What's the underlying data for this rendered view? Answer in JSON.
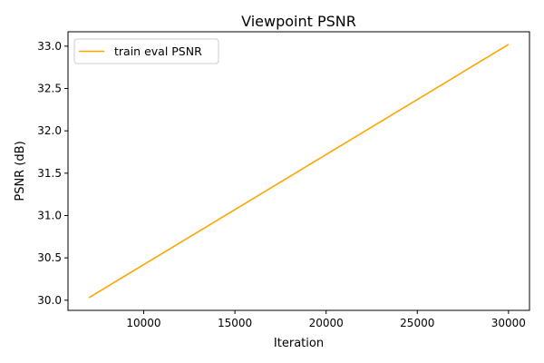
{
  "chart_data": {
    "type": "line",
    "title": "Viewpoint PSNR",
    "xlabel": "Iteration",
    "ylabel": "PSNR (dB)",
    "xlim": [
      5850,
      31150
    ],
    "ylim": [
      29.88,
      33.17
    ],
    "xticks": [
      10000,
      15000,
      20000,
      25000,
      30000
    ],
    "xtick_labels": [
      "10000",
      "15000",
      "20000",
      "25000",
      "30000"
    ],
    "yticks": [
      30.0,
      30.5,
      31.0,
      31.5,
      32.0,
      32.5,
      33.0
    ],
    "ytick_labels": [
      "30.0",
      "30.5",
      "31.0",
      "31.5",
      "32.0",
      "32.5",
      "33.0"
    ],
    "grid": false,
    "legend": "upper-left",
    "series": [
      {
        "name": "train eval PSNR",
        "color": "#ffa500",
        "x": [
          7000,
          30000
        ],
        "y": [
          30.03,
          33.02
        ]
      }
    ]
  }
}
